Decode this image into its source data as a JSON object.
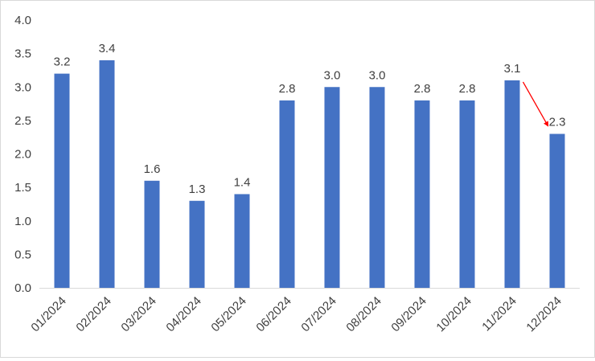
{
  "chart_data": {
    "type": "bar",
    "categories": [
      "01/2024",
      "02/2024",
      "03/2024",
      "04/2024",
      "05/2024",
      "06/2024",
      "07/2024",
      "08/2024",
      "09/2024",
      "10/2024",
      "11/2024",
      "12/2024"
    ],
    "values": [
      3.2,
      3.4,
      1.6,
      1.3,
      1.4,
      2.8,
      3.0,
      3.0,
      2.8,
      2.8,
      3.1,
      2.3
    ],
    "data_labels": [
      "3.2",
      "3.4",
      "1.6",
      "1.3",
      "1.4",
      "2.8",
      "3.0",
      "3.0",
      "2.8",
      "2.8",
      "3.1",
      "2.3"
    ],
    "y_ticks": [
      "0.0",
      "0.5",
      "1.0",
      "1.5",
      "2.0",
      "2.5",
      "3.0",
      "3.5",
      "4.0"
    ],
    "ylim": [
      0,
      4
    ],
    "grid": false,
    "legend": "none",
    "title": "",
    "xlabel": "",
    "ylabel": "",
    "annotations": [
      {
        "type": "arrow",
        "from_category": "11/2024",
        "to_category": "12/2024",
        "color": "#ff0000"
      }
    ],
    "colors": {
      "bar": "#4472c4",
      "axis": "#d9d9d9",
      "arrow": "#ff0000"
    }
  }
}
